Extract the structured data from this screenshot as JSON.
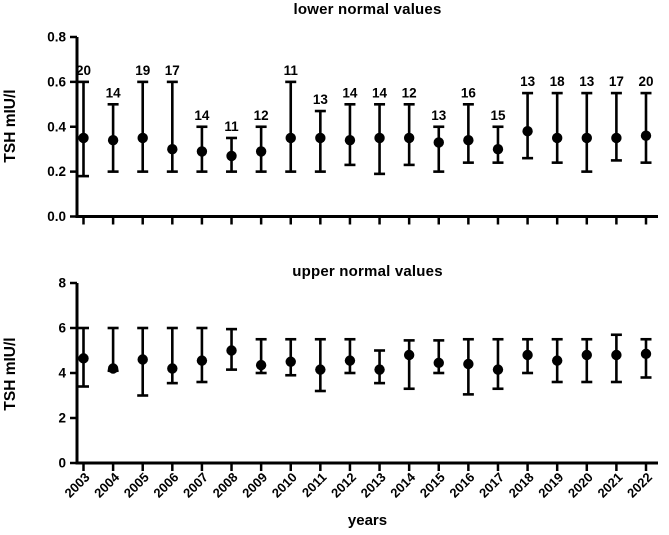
{
  "figure": {
    "background": "#ffffff",
    "ink": "#000000"
  },
  "chart_data": [
    {
      "type": "scatter",
      "title": "lower normal values",
      "ylabel": "TSH mIU/l",
      "xlabel": "",
      "legend": "none",
      "grid": false,
      "marker": "filled-circle-with-error-bars",
      "ylim": [
        0.0,
        0.8
      ],
      "yticks": [
        0.0,
        0.2,
        0.4,
        0.6,
        0.8
      ],
      "ytick_labels": [
        "0.0",
        "0.2",
        "0.4",
        "0.6",
        "0.8"
      ],
      "show_x_tick_labels": false,
      "categories": [
        "2003",
        "2004",
        "2005",
        "2006",
        "2007",
        "2008",
        "2009",
        "2010",
        "2011",
        "2012",
        "2013",
        "2014",
        "2015",
        "2016",
        "2017",
        "2018",
        "2019",
        "2020",
        "2021",
        "2022"
      ],
      "counts": [
        20,
        14,
        19,
        17,
        14,
        11,
        12,
        11,
        13,
        14,
        14,
        12,
        13,
        16,
        15,
        13,
        18,
        13,
        17,
        20
      ],
      "values": [
        0.35,
        0.34,
        0.35,
        0.3,
        0.29,
        0.27,
        0.29,
        0.35,
        0.35,
        0.34,
        0.35,
        0.35,
        0.33,
        0.34,
        0.3,
        0.38,
        0.35,
        0.35,
        0.35,
        0.36
      ],
      "err_low": [
        0.18,
        0.2,
        0.2,
        0.2,
        0.2,
        0.2,
        0.2,
        0.2,
        0.2,
        0.23,
        0.19,
        0.23,
        0.2,
        0.24,
        0.24,
        0.26,
        0.24,
        0.2,
        0.25,
        0.24
      ],
      "err_high": [
        0.6,
        0.5,
        0.6,
        0.6,
        0.4,
        0.35,
        0.4,
        0.6,
        0.47,
        0.5,
        0.5,
        0.5,
        0.4,
        0.5,
        0.4,
        0.55,
        0.55,
        0.55,
        0.55,
        0.55
      ]
    },
    {
      "type": "scatter",
      "title": "upper normal values",
      "ylabel": "TSH mIU/l",
      "xlabel": "years",
      "legend": "none",
      "grid": false,
      "marker": "filled-circle-with-error-bars",
      "ylim": [
        0,
        8
      ],
      "yticks": [
        0,
        2,
        4,
        6,
        8
      ],
      "ytick_labels": [
        "0",
        "2",
        "4",
        "6",
        "8"
      ],
      "show_x_tick_labels": true,
      "categories": [
        "2003",
        "2004",
        "2005",
        "2006",
        "2007",
        "2008",
        "2009",
        "2010",
        "2011",
        "2012",
        "2013",
        "2014",
        "2015",
        "2016",
        "2017",
        "2018",
        "2019",
        "2020",
        "2021",
        "2022"
      ],
      "values": [
        4.65,
        4.2,
        4.6,
        4.2,
        4.55,
        5.0,
        4.35,
        4.5,
        4.15,
        4.55,
        4.15,
        4.8,
        4.45,
        4.4,
        4.15,
        4.8,
        4.55,
        4.8,
        4.8,
        4.85
      ],
      "err_low": [
        3.4,
        4.1,
        3.0,
        3.55,
        3.6,
        4.15,
        4.0,
        3.9,
        3.2,
        4.0,
        3.55,
        3.3,
        4.0,
        3.05,
        3.3,
        4.0,
        3.6,
        3.6,
        3.6,
        3.8
      ],
      "err_high": [
        6.0,
        6.0,
        6.0,
        6.0,
        6.0,
        5.95,
        5.5,
        5.5,
        5.5,
        5.5,
        5.0,
        5.45,
        5.45,
        5.5,
        5.5,
        5.5,
        5.5,
        5.5,
        5.7,
        5.5
      ]
    }
  ]
}
